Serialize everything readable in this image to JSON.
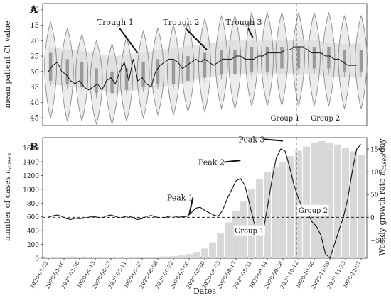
{
  "chart_data": [
    {
      "panel_label": "A",
      "type": "violin",
      "title": "",
      "ylabel": "mean patient Ct value",
      "ylim": [
        47.5,
        8
      ],
      "yticks": [
        10,
        15,
        20,
        25,
        30,
        35,
        40,
        45
      ],
      "ytick_labels": [
        "10",
        "15",
        "20",
        "25",
        "30",
        "35",
        "40",
        "45"
      ],
      "x_range": [
        0,
        280
      ],
      "grid": false,
      "violin_bins": {
        "x": [
          2,
          17,
          30,
          43,
          57,
          70,
          85,
          98,
          112,
          125,
          140,
          155,
          167,
          182,
          196,
          209,
          224,
          238,
          251,
          265,
          280
        ],
        "median": [
          28,
          30,
          31,
          33,
          34,
          33,
          31,
          30,
          30,
          29,
          28,
          27,
          27,
          26,
          26,
          25,
          25,
          25,
          25,
          26,
          26
        ],
        "q1": [
          24,
          26,
          27,
          29,
          30,
          29,
          27,
          26,
          26,
          25,
          24,
          23,
          23,
          22,
          22,
          22,
          22,
          22,
          22,
          23,
          23
        ],
        "q3": [
          33,
          34,
          35,
          37,
          37,
          36,
          35,
          34,
          34,
          33,
          32,
          31,
          31,
          30,
          30,
          29,
          29,
          29,
          29,
          30,
          30
        ],
        "min": [
          14,
          16,
          18,
          20,
          21,
          19,
          17,
          16,
          15,
          14,
          13,
          12,
          12,
          11,
          11,
          11,
          11,
          11,
          11,
          12,
          12
        ],
        "max": [
          45,
          46,
          46,
          47,
          47,
          46,
          45,
          44,
          44,
          43,
          43,
          42,
          42,
          41,
          41,
          41,
          41,
          41,
          41,
          42,
          42
        ]
      },
      "band": {
        "x": [
          0,
          20,
          40,
          60,
          80,
          100,
          120,
          140,
          160,
          180,
          200,
          220,
          240,
          260,
          280
        ],
        "lower": [
          22,
          23,
          24,
          25,
          24,
          23,
          22,
          21,
          20,
          20,
          20,
          20,
          20,
          21,
          21
        ],
        "upper": [
          34,
          35,
          36,
          37,
          36,
          35,
          34,
          32,
          31,
          31,
          31,
          31,
          31,
          32,
          32
        ]
      },
      "series": [
        {
          "x": [
            0,
            4,
            8,
            12,
            16,
            20,
            24,
            28,
            32,
            36,
            40,
            44,
            48,
            52,
            56,
            60,
            64,
            68,
            72,
            76,
            80,
            84,
            88,
            92,
            96,
            100,
            104,
            108,
            112,
            116,
            120,
            124,
            128,
            132,
            136,
            140,
            144,
            148,
            152,
            156,
            160,
            164,
            168,
            172,
            176,
            180,
            184,
            188,
            192,
            196,
            200,
            204,
            208,
            212,
            216,
            220,
            224,
            228,
            232,
            236,
            240,
            244,
            248,
            252,
            256,
            260,
            264,
            268,
            272,
            276
          ],
          "y": [
            30,
            28,
            27,
            30,
            31,
            33,
            34,
            33,
            35,
            36,
            35,
            34,
            36,
            33,
            32,
            34,
            30,
            27,
            33,
            26,
            33,
            32,
            34,
            35,
            30,
            28,
            27,
            26,
            26,
            27,
            29,
            28,
            27,
            26,
            27,
            26,
            27,
            28,
            27,
            26,
            26,
            26,
            25,
            25,
            26,
            26,
            26,
            25,
            25,
            24,
            24,
            24,
            24,
            23,
            23,
            22,
            22,
            22,
            23,
            24,
            24,
            24,
            25,
            25,
            26,
            26,
            27,
            28,
            28,
            28
          ]
        }
      ],
      "annotations": [
        {
          "text": "Trough 1",
          "x": 60,
          "y": 14,
          "to_x": 80,
          "to_y": 24
        },
        {
          "text": "Trough 2",
          "x": 119,
          "y": 14,
          "to_x": 142,
          "to_y": 23
        },
        {
          "text": "Trough 3",
          "x": 175,
          "y": 14,
          "to_x": 183,
          "to_y": 19
        }
      ],
      "vline_x": 222,
      "group_labels": [
        {
          "text": "Group 1",
          "x": 212
        },
        {
          "text": "Group 2",
          "x": 248
        }
      ]
    },
    {
      "panel_label": "B",
      "type": "bar+line",
      "title": "",
      "xlabel": "Dates",
      "ylabel": "number of cases n_cases",
      "ylabel_parts": {
        "main": "number of cases ",
        "italic": "n",
        "sub": "cases"
      },
      "y2label": "Weekly growth rate n_cases/day",
      "y2label_parts": {
        "main": "Weekly growth rate ",
        "italic": "n",
        "sub": "cases",
        "suffix": "/day"
      },
      "ylim": [
        0,
        1750
      ],
      "yticks": [
        0,
        200,
        400,
        600,
        800,
        1000,
        1200,
        1400,
        1600
      ],
      "ytick_labels": [
        "0",
        "200",
        "400",
        "600",
        "800",
        "1000",
        "1200",
        "1400",
        "1600"
      ],
      "y2lim": [
        -90,
        175
      ],
      "y2ticks": [
        -50,
        0,
        50,
        100,
        150
      ],
      "y2tick_labels": [
        "−50",
        "0",
        "50",
        "100",
        "150"
      ],
      "grid": false,
      "x_tick_positions": [
        0,
        14,
        28,
        42,
        56,
        70,
        84,
        98,
        112,
        126,
        140,
        154,
        168,
        182,
        196,
        210,
        224,
        238,
        252,
        266,
        280
      ],
      "x_tick_labels": [
        "2020-03-02",
        "2020-03-16",
        "2020-03-30",
        "2020-04-13",
        "2020-04-27",
        "2020-05-11",
        "2020-05-25",
        "2020-06-08",
        "2020-06-22",
        "2020-07-06",
        "2020-07-20",
        "2020-08-03",
        "2020-08-17",
        "2020-08-31",
        "2020-09-14",
        "2020-09-28",
        "2020-10-12",
        "2020-10-26",
        "2020-11-09",
        "2020-11-23",
        "2020-12-07"
      ],
      "cases_bars": {
        "x": [
          0,
          7,
          14,
          21,
          28,
          35,
          42,
          49,
          56,
          63,
          70,
          77,
          84,
          91,
          98,
          105,
          112,
          119,
          126,
          133,
          140,
          147,
          154,
          161,
          168,
          175,
          182,
          189,
          196,
          203,
          210,
          217,
          224,
          231,
          238,
          245,
          252,
          259,
          266,
          273,
          280
        ],
        "values": [
          5,
          10,
          20,
          25,
          20,
          15,
          10,
          8,
          5,
          5,
          5,
          8,
          10,
          15,
          20,
          25,
          30,
          40,
          60,
          90,
          140,
          230,
          370,
          520,
          680,
          830,
          1000,
          1150,
          1250,
          1330,
          1400,
          1480,
          1560,
          1620,
          1680,
          1700,
          1680,
          1650,
          1600,
          1550,
          1500
        ]
      },
      "series": [
        {
          "x": [
            0,
            4,
            8,
            12,
            16,
            20,
            24,
            28,
            32,
            36,
            40,
            44,
            48,
            52,
            56,
            60,
            64,
            68,
            72,
            76,
            80,
            84,
            88,
            92,
            96,
            100,
            104,
            108,
            112,
            116,
            120,
            124,
            128,
            132,
            136,
            140,
            144,
            148,
            152,
            156,
            160,
            164,
            168,
            172,
            176,
            180,
            184,
            188,
            192,
            196,
            200,
            204,
            208,
            212,
            216,
            220,
            224,
            228,
            232,
            236,
            240,
            244,
            248,
            252,
            256,
            260,
            264,
            268,
            272,
            276,
            280
          ],
          "y": [
            0,
            3,
            5,
            2,
            -3,
            -5,
            -2,
            -3,
            -2,
            0,
            2,
            0,
            -2,
            3,
            5,
            2,
            -2,
            1,
            3,
            -2,
            -5,
            -3,
            2,
            4,
            1,
            -2,
            -1,
            2,
            3,
            0,
            1,
            2,
            10,
            20,
            22,
            15,
            10,
            5,
            2,
            15,
            40,
            60,
            80,
            85,
            70,
            30,
            -10,
            -40,
            -35,
            20,
            80,
            130,
            150,
            145,
            110,
            70,
            40,
            20,
            10,
            -10,
            -20,
            -40,
            -80,
            -90,
            -60,
            -30,
            0,
            40,
            100,
            150,
            160
          ]
        }
      ],
      "zero_line_y2": 0,
      "annotations": [
        {
          "text": "Peak 1",
          "x": 118,
          "y2": 37,
          "to_x": 126,
          "to_y2": 5
        },
        {
          "text": "Peak 2",
          "x": 146,
          "y2": 115,
          "to_x": 172,
          "to_y2": 125
        },
        {
          "text": "Peak 3",
          "x": 182,
          "y2": 165,
          "to_x": 210,
          "to_y2": 168
        }
      ],
      "vline_x": 222,
      "group_labels": [
        {
          "text": "Group 1",
          "x": 180,
          "y2": -35
        },
        {
          "text": "Group 2",
          "x": 237,
          "y2": 10
        }
      ]
    }
  ]
}
